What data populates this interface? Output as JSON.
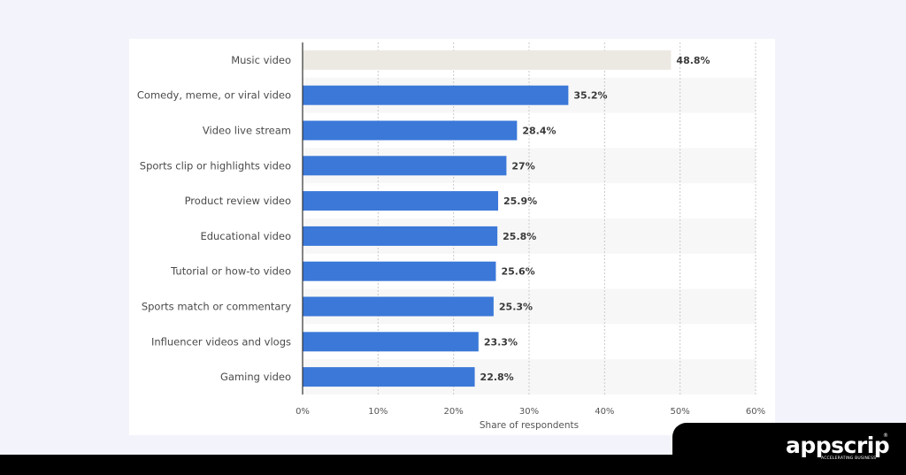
{
  "chart_data": {
    "type": "bar",
    "orientation": "horizontal",
    "categories": [
      "Music video",
      "Comedy, meme, or viral video",
      "Video live stream",
      "Sports clip or highlights video",
      "Product review video",
      "Educational video",
      "Tutorial or how-to video",
      "Sports match or commentary",
      "Influencer videos and vlogs",
      "Gaming video"
    ],
    "values": [
      48.8,
      35.2,
      28.4,
      27,
      25.9,
      25.8,
      25.6,
      25.3,
      23.3,
      22.8
    ],
    "value_labels": [
      "48.8%",
      "35.2%",
      "28.4%",
      "27%",
      "25.9%",
      "25.8%",
      "25.6%",
      "25.3%",
      "23.3%",
      "22.8%"
    ],
    "xlabel": "Share of respondents",
    "xlim": [
      0,
      60
    ],
    "xticks": [
      0,
      10,
      20,
      30,
      40,
      50,
      60
    ],
    "xtick_labels": [
      "0%",
      "10%",
      "20%",
      "30%",
      "40%",
      "50%",
      "60%"
    ],
    "highlight_index": 0,
    "colors": {
      "bar": "#3b78d8",
      "highlight_bar": "#ece9e2",
      "stripe": "#f7f7f7",
      "grid": "#c8c8c8",
      "axis": "#333333",
      "category_text": "#4a4a4a",
      "value_text": "#3a3a3a"
    }
  },
  "brand": {
    "name": "appscrip",
    "tagline": "ACCELERATING BUSINESS",
    "mark": "®"
  }
}
